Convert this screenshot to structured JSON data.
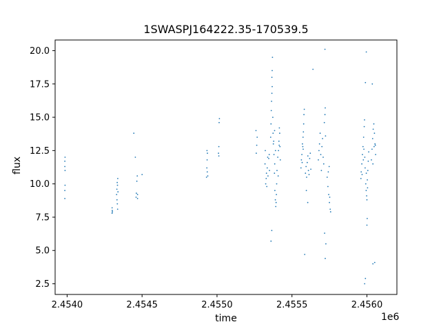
{
  "chart_data": {
    "type": "scatter",
    "title": "1SWASPJ164222.35-170539.5",
    "xlabel": "time",
    "ylabel": "flux",
    "x_offset_label": "1e6",
    "xlim": [
      2453920,
      2456200
    ],
    "ylim": [
      1.7,
      20.8
    ],
    "xticks": [
      {
        "value": 2454000,
        "label": "2.4540"
      },
      {
        "value": 2454500,
        "label": "2.4545"
      },
      {
        "value": 2455000,
        "label": "2.4550"
      },
      {
        "value": 2455500,
        "label": "2.4555"
      },
      {
        "value": 2456000,
        "label": "2.4560"
      }
    ],
    "yticks": [
      {
        "value": 2.5,
        "label": "2.5"
      },
      {
        "value": 5.0,
        "label": "5.0"
      },
      {
        "value": 7.5,
        "label": "7.5"
      },
      {
        "value": 10.0,
        "label": "10.0"
      },
      {
        "value": 12.5,
        "label": "12.5"
      },
      {
        "value": 15.0,
        "label": "15.0"
      },
      {
        "value": 17.5,
        "label": "17.5"
      },
      {
        "value": 20.0,
        "label": "20.0"
      }
    ],
    "grid": false,
    "point_color": "#1f77b4",
    "series": [
      {
        "values": [
          [
            2453985,
            11.3
          ],
          [
            2453985,
            11.7
          ],
          [
            2453986,
            12.0
          ],
          [
            2453985,
            9.5
          ],
          [
            2453986,
            9.9
          ],
          [
            2453985,
            8.9
          ],
          [
            2453986,
            11.0
          ],
          [
            2454300,
            7.8
          ],
          [
            2454301,
            8.0
          ],
          [
            2454302,
            7.9
          ],
          [
            2454300,
            8.2
          ],
          [
            2454330,
            9.2
          ],
          [
            2454332,
            9.6
          ],
          [
            2454334,
            10.1
          ],
          [
            2454336,
            9.9
          ],
          [
            2454338,
            10.4
          ],
          [
            2454335,
            8.5
          ],
          [
            2454337,
            8.1
          ],
          [
            2454333,
            8.8
          ],
          [
            2454339,
            9.4
          ],
          [
            2454460,
            9.0
          ],
          [
            2454462,
            9.3
          ],
          [
            2454465,
            10.2
          ],
          [
            2454468,
            10.6
          ],
          [
            2454470,
            9.2
          ],
          [
            2454455,
            12.0
          ],
          [
            2454445,
            13.8
          ],
          [
            2454470,
            8.9
          ],
          [
            2454500,
            10.7
          ],
          [
            2454930,
            10.5
          ],
          [
            2454932,
            11.2
          ],
          [
            2454934,
            11.8
          ],
          [
            2454936,
            12.3
          ],
          [
            2454935,
            10.9
          ],
          [
            2454938,
            10.6
          ],
          [
            2454933,
            12.5
          ],
          [
            2455010,
            12.3
          ],
          [
            2455012,
            12.8
          ],
          [
            2455014,
            14.6
          ],
          [
            2455016,
            14.9
          ],
          [
            2455012,
            12.1
          ],
          [
            2455260,
            14.0
          ],
          [
            2455262,
            12.3
          ],
          [
            2455265,
            12.9
          ],
          [
            2455268,
            13.5
          ],
          [
            2455320,
            11.5
          ],
          [
            2455322,
            12.5
          ],
          [
            2455325,
            10.0
          ],
          [
            2455328,
            10.4
          ],
          [
            2455330,
            10.8
          ],
          [
            2455332,
            9.8
          ],
          [
            2455335,
            11.2
          ],
          [
            2455338,
            12.0
          ],
          [
            2455340,
            10.6
          ],
          [
            2455345,
            11.9
          ],
          [
            2455348,
            12.2
          ],
          [
            2455350,
            11.0
          ],
          [
            2455358,
            13.5
          ],
          [
            2455360,
            14.5
          ],
          [
            2455362,
            15.5
          ],
          [
            2455364,
            16.2
          ],
          [
            2455366,
            16.8
          ],
          [
            2455368,
            17.3
          ],
          [
            2455366,
            18.0
          ],
          [
            2455368,
            18.5
          ],
          [
            2455370,
            19.5
          ],
          [
            2455372,
            15.0
          ],
          [
            2455374,
            13.8
          ],
          [
            2455376,
            13.0
          ],
          [
            2455360,
            5.7
          ],
          [
            2455365,
            6.5
          ],
          [
            2455380,
            12.2
          ],
          [
            2455383,
            10.8
          ],
          [
            2455386,
            9.5
          ],
          [
            2455389,
            8.8
          ],
          [
            2455392,
            8.3
          ],
          [
            2455394,
            8.6
          ],
          [
            2455396,
            9.2
          ],
          [
            2455398,
            10.0
          ],
          [
            2455385,
            11.5
          ],
          [
            2455390,
            12.5
          ],
          [
            2455378,
            13.2
          ],
          [
            2455384,
            14.0
          ],
          [
            2455400,
            11.0
          ],
          [
            2455405,
            12.0
          ],
          [
            2455410,
            12.5
          ],
          [
            2455413,
            13.2
          ],
          [
            2455416,
            14.2
          ],
          [
            2455418,
            13.8
          ],
          [
            2455420,
            12.8
          ],
          [
            2455422,
            11.8
          ],
          [
            2455408,
            10.6
          ],
          [
            2455415,
            12.9
          ],
          [
            2455560,
            11.2
          ],
          [
            2455563,
            11.8
          ],
          [
            2455566,
            12.2
          ],
          [
            2455570,
            13.0
          ],
          [
            2455574,
            13.5
          ],
          [
            2455578,
            14.5
          ],
          [
            2455580,
            15.2
          ],
          [
            2455582,
            15.6
          ],
          [
            2455575,
            12.6
          ],
          [
            2455568,
            11.6
          ],
          [
            2455572,
            12.8
          ],
          [
            2455576,
            13.9
          ],
          [
            2455590,
            10.8
          ],
          [
            2455594,
            11.3
          ],
          [
            2455598,
            10.5
          ],
          [
            2455602,
            11.6
          ],
          [
            2455606,
            12.1
          ],
          [
            2455610,
            11.0
          ],
          [
            2455614,
            10.7
          ],
          [
            2455618,
            11.9
          ],
          [
            2455622,
            12.3
          ],
          [
            2455626,
            11.1
          ],
          [
            2455585,
            4.7
          ],
          [
            2455596,
            9.5
          ],
          [
            2455605,
            8.6
          ],
          [
            2455680,
            12.5
          ],
          [
            2455684,
            13.0
          ],
          [
            2455688,
            13.8
          ],
          [
            2455692,
            12.2
          ],
          [
            2455696,
            11.0
          ],
          [
            2455700,
            12.8
          ],
          [
            2455704,
            13.4
          ],
          [
            2455708,
            12.0
          ],
          [
            2455712,
            11.5
          ],
          [
            2455716,
            14.6
          ],
          [
            2455720,
            15.2
          ],
          [
            2455722,
            15.7
          ],
          [
            2455724,
            13.6
          ],
          [
            2455676,
            11.8
          ],
          [
            2455640,
            18.6
          ],
          [
            2455720,
            20.1
          ],
          [
            2455718,
            6.3
          ],
          [
            2455722,
            4.4
          ],
          [
            2455726,
            5.5
          ],
          [
            2455735,
            10.5
          ],
          [
            2455740,
            9.8
          ],
          [
            2455745,
            9.2
          ],
          [
            2455750,
            8.6
          ],
          [
            2455755,
            8.1
          ],
          [
            2455758,
            7.9
          ],
          [
            2455742,
            10.9
          ],
          [
            2455748,
            11.3
          ],
          [
            2455752,
            9.0
          ],
          [
            2455960,
            10.4
          ],
          [
            2455962,
            10.9
          ],
          [
            2455966,
            11.5
          ],
          [
            2455970,
            12.2
          ],
          [
            2455974,
            12.8
          ],
          [
            2455978,
            13.5
          ],
          [
            2455982,
            14.3
          ],
          [
            2455984,
            14.8
          ],
          [
            2455986,
            12.0
          ],
          [
            2455988,
            11.2
          ],
          [
            2455968,
            10.7
          ],
          [
            2455976,
            11.8
          ],
          [
            2455980,
            12.6
          ],
          [
            2455992,
            10.0
          ],
          [
            2455995,
            9.5
          ],
          [
            2455998,
            9.1
          ],
          [
            2456000,
            8.8
          ],
          [
            2456003,
            10.3
          ],
          [
            2456006,
            11.0
          ],
          [
            2456009,
            11.7
          ],
          [
            2456012,
            12.4
          ],
          [
            2455996,
            10.8
          ],
          [
            2456004,
            9.7
          ],
          [
            2455990,
            17.6
          ],
          [
            2455996,
            19.9
          ],
          [
            2455985,
            2.5
          ],
          [
            2455990,
            2.9
          ],
          [
            2456000,
            6.9
          ],
          [
            2456002,
            7.4
          ],
          [
            2456030,
            11.8
          ],
          [
            2456034,
            12.6
          ],
          [
            2456038,
            13.4
          ],
          [
            2456042,
            14.1
          ],
          [
            2456046,
            14.5
          ],
          [
            2456050,
            13.8
          ],
          [
            2456054,
            13.0
          ],
          [
            2456058,
            12.2
          ],
          [
            2456040,
            11.5
          ],
          [
            2456048,
            12.8
          ],
          [
            2456036,
            17.5
          ],
          [
            2456040,
            4.0
          ],
          [
            2456052,
            4.1
          ],
          [
            2456056,
            12.9
          ]
        ]
      }
    ]
  }
}
